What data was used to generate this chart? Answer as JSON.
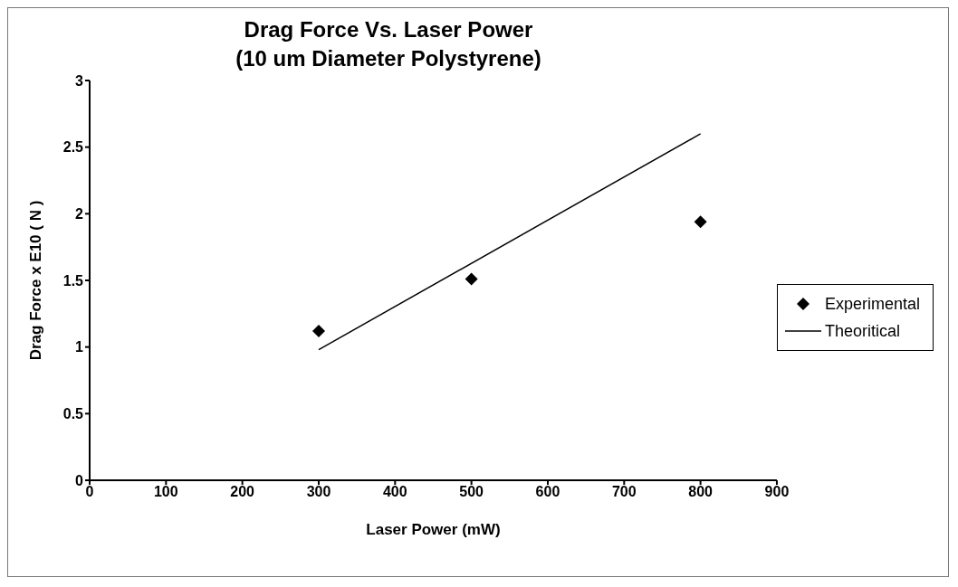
{
  "chart_data": {
    "type": "scatter",
    "title": "Drag Force Vs. Laser Power",
    "subtitle": "(10 um Diameter Polystyrene)",
    "xlabel": "Laser Power (mW)",
    "ylabel": "Drag Force x E10 ( N )",
    "xlim": [
      0,
      900
    ],
    "xticks": [
      0,
      100,
      200,
      300,
      400,
      500,
      600,
      700,
      800,
      900
    ],
    "ylim": [
      0,
      3
    ],
    "yticks": [
      0,
      0.5,
      1,
      1.5,
      2,
      2.5,
      3
    ],
    "grid": false,
    "legend": "right",
    "series": [
      {
        "name": "Experimental",
        "color": "#000000",
        "marker": "diamond",
        "x": [
          300,
          500,
          800
        ],
        "values": [
          1.12,
          1.51,
          1.94
        ]
      },
      {
        "name": "Theoritical",
        "type": "line",
        "color": "#000000",
        "marker": "none",
        "line_style": "solid",
        "x": [
          300,
          800
        ],
        "values": [
          0.98,
          2.6
        ]
      }
    ]
  }
}
